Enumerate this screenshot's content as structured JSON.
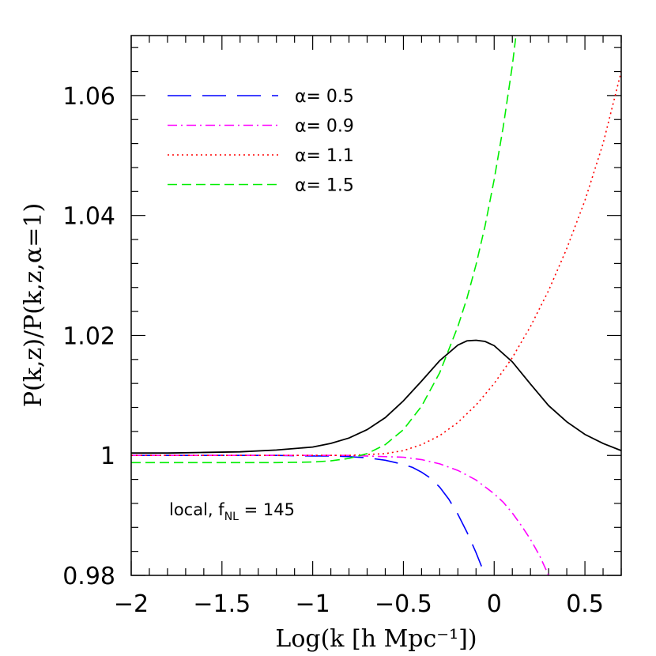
{
  "chart_data": {
    "type": "line",
    "title": "",
    "xlabel": "Log(k [h Mpc⁻¹])",
    "ylabel": "P(k,z)/P(k,z,α=1)",
    "xlim": [
      -2,
      0.7
    ],
    "ylim": [
      0.98,
      1.07
    ],
    "x_ticks": [
      -2,
      -1.5,
      -1,
      -0.5,
      0,
      0.5
    ],
    "x_tick_labels": [
      "−2",
      "−1.5",
      "−1",
      "−0.5",
      "0",
      "0.5"
    ],
    "y_ticks": [
      0.98,
      1,
      1.02,
      1.04,
      1.06
    ],
    "y_tick_labels": [
      "0.98",
      "1",
      "1.02",
      "1.04",
      "1.06"
    ],
    "grid": false,
    "legend_position": "top-left",
    "annotation": {
      "prefix": "local, f",
      "subscript": "NL",
      "suffix": " = 145"
    },
    "series": [
      {
        "name": "α= 0.5",
        "color": "#0000ff",
        "dash": "long-dash",
        "x": [
          -2,
          -1.8,
          -1.6,
          -1.4,
          -1.2,
          -1.0,
          -0.9,
          -0.8,
          -0.7,
          -0.6,
          -0.5,
          -0.45,
          -0.4,
          -0.35,
          -0.3,
          -0.25,
          -0.2,
          -0.15,
          -0.1,
          -0.05,
          -0.02
        ],
        "y": [
          1.0,
          1.0,
          1.0,
          1.0,
          1.0,
          0.9999,
          0.9999,
          0.9998,
          0.9996,
          0.9992,
          0.9985,
          0.998,
          0.9972,
          0.9962,
          0.9947,
          0.9927,
          0.9902,
          0.9872,
          0.9838,
          0.98,
          0.9775
        ]
      },
      {
        "name": "α= 0.9",
        "color": "#ff00ff",
        "dash": "dash-dot",
        "x": [
          -2,
          -1.8,
          -1.6,
          -1.4,
          -1.2,
          -1.0,
          -0.8,
          -0.6,
          -0.5,
          -0.4,
          -0.3,
          -0.2,
          -0.1,
          0.0,
          0.05,
          0.1,
          0.15,
          0.2,
          0.25,
          0.3
        ],
        "y": [
          1.0,
          1.0,
          1.0,
          1.0,
          1.0,
          1.0,
          1.0,
          0.9998,
          0.9997,
          0.9993,
          0.9986,
          0.9975,
          0.9959,
          0.9936,
          0.9922,
          0.9904,
          0.9883,
          0.986,
          0.9833,
          0.98
        ]
      },
      {
        "name": "α= 1.1",
        "color": "#ff0000",
        "dash": "dotted",
        "x": [
          -2,
          -1.8,
          -1.6,
          -1.4,
          -1.2,
          -1.0,
          -0.8,
          -0.6,
          -0.5,
          -0.4,
          -0.3,
          -0.2,
          -0.1,
          0.0,
          0.1,
          0.2,
          0.3,
          0.4,
          0.5,
          0.6,
          0.7
        ],
        "y": [
          1.0,
          1.0,
          1.0,
          1.0,
          1.0,
          1.0,
          1.0,
          1.0003,
          1.0008,
          1.0018,
          1.0033,
          1.0055,
          1.0084,
          1.012,
          1.0163,
          1.0215,
          1.0275,
          1.0345,
          1.0425,
          1.052,
          1.064
        ]
      },
      {
        "name": "α= 1.5",
        "color": "#00ee00",
        "dash": "short-dash",
        "x": [
          -2,
          -1.8,
          -1.6,
          -1.4,
          -1.2,
          -1.0,
          -0.9,
          -0.8,
          -0.7,
          -0.6,
          -0.5,
          -0.4,
          -0.3,
          -0.2,
          -0.15,
          -0.1,
          -0.05,
          0.0,
          0.05,
          0.1,
          0.12
        ],
        "y": [
          0.9988,
          0.9988,
          0.9988,
          0.9988,
          0.9988,
          0.9989,
          0.9991,
          0.9995,
          1.0003,
          1.0018,
          1.0043,
          1.0082,
          1.0138,
          1.0215,
          1.0262,
          1.0318,
          1.0383,
          1.046,
          1.0548,
          1.065,
          1.07
        ]
      },
      {
        "name": "",
        "color": "#000000",
        "dash": "solid",
        "x": [
          -2,
          -1.8,
          -1.6,
          -1.4,
          -1.2,
          -1.0,
          -0.9,
          -0.8,
          -0.7,
          -0.6,
          -0.5,
          -0.4,
          -0.3,
          -0.2,
          -0.15,
          -0.1,
          -0.05,
          0.0,
          0.1,
          0.2,
          0.3,
          0.4,
          0.5,
          0.6,
          0.7
        ],
        "y": [
          1.0004,
          1.0004,
          1.0005,
          1.0006,
          1.0009,
          1.0014,
          1.002,
          1.0029,
          1.0043,
          1.0063,
          1.0091,
          1.0124,
          1.0158,
          1.0184,
          1.0191,
          1.0192,
          1.019,
          1.0183,
          1.0156,
          1.0119,
          1.0083,
          1.0056,
          1.0035,
          1.002,
          1.0008
        ]
      }
    ]
  }
}
